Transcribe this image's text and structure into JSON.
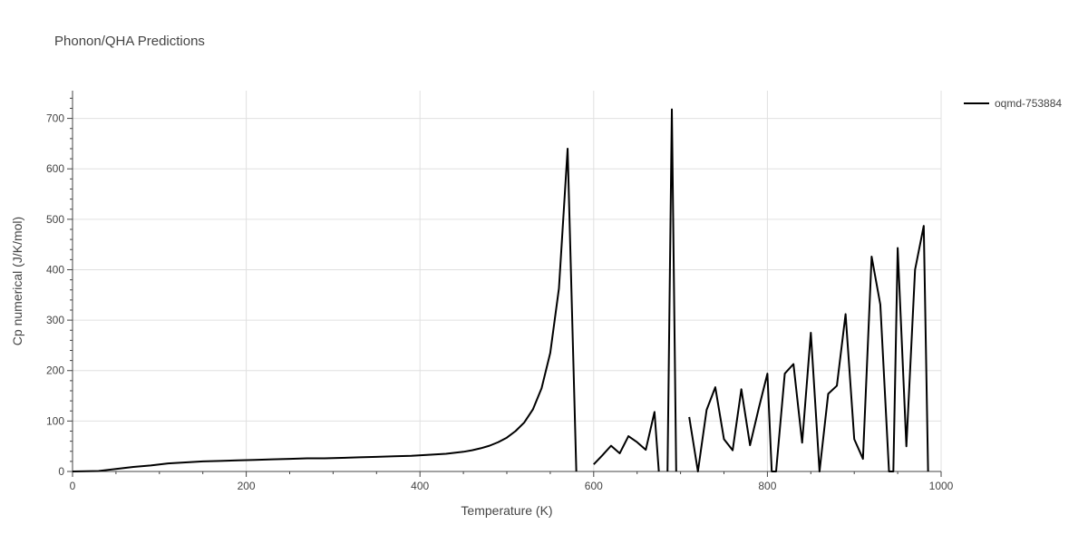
{
  "chart_data": {
    "type": "line",
    "title": "Phonon/QHA Predictions",
    "xlabel": "Temperature (K)",
    "ylabel": "Cp numerical (J/K/mol)",
    "xlim": [
      0,
      1000
    ],
    "ylim": [
      0,
      755
    ],
    "x_ticks": [
      0,
      200,
      400,
      600,
      800,
      1000
    ],
    "y_ticks": [
      0,
      100,
      200,
      300,
      400,
      500,
      600,
      700
    ],
    "x_minor_step": 50,
    "y_minor_step": 20,
    "grid": true,
    "legend_position": "right",
    "colors": {
      "line": "#000000",
      "grid": "#e0e0e0",
      "text": "#444444"
    },
    "series": [
      {
        "name": "oqmd-753884",
        "x": [
          0,
          30,
          50,
          70,
          90,
          110,
          130,
          150,
          170,
          190,
          210,
          230,
          250,
          270,
          290,
          310,
          330,
          350,
          370,
          390,
          410,
          430,
          440,
          450,
          460,
          470,
          480,
          490,
          500,
          510,
          520,
          530,
          540,
          550,
          560,
          570,
          580,
          590,
          600,
          610,
          620,
          630,
          640,
          650,
          660,
          670,
          675,
          680,
          685,
          690,
          695,
          700,
          710,
          720,
          730,
          740,
          750,
          760,
          770,
          780,
          790,
          800,
          805,
          810,
          820,
          830,
          840,
          850,
          860,
          870,
          880,
          890,
          900,
          910,
          920,
          930,
          940,
          945,
          950,
          960,
          970,
          980,
          985
        ],
        "y": [
          0,
          1,
          5,
          9,
          12,
          16,
          18,
          20,
          21,
          22,
          23,
          24,
          25,
          26,
          26,
          27,
          28,
          29,
          30,
          31,
          33,
          35,
          37,
          39,
          42,
          46,
          51,
          58,
          67,
          80,
          97,
          123,
          165,
          235,
          363,
          640,
          0,
          null,
          14,
          32,
          51,
          36,
          70,
          58,
          43,
          118,
          0,
          null,
          0,
          718,
          0,
          null,
          108,
          0,
          122,
          167,
          64,
          42,
          163,
          52,
          125,
          194,
          0,
          0,
          194,
          213,
          57,
          275,
          0,
          154,
          170,
          312,
          64,
          25,
          426,
          331,
          0,
          0,
          443,
          50,
          400,
          487,
          0
        ]
      }
    ]
  }
}
